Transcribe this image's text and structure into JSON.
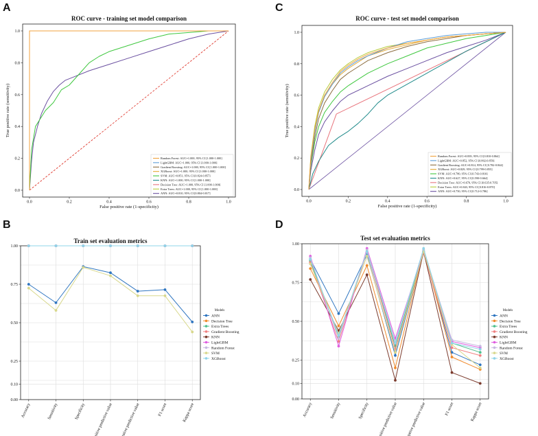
{
  "chart_data": [
    {
      "panel": "A",
      "type": "line",
      "title": "ROC curve - training set model comparison",
      "xlabel": "False positive rate (1-specificity)",
      "ylabel": "True positive rate (sensitivity)",
      "xlim": [
        0,
        1
      ],
      "ylim": [
        0,
        1
      ],
      "xticks": [
        "0.0",
        "0.2",
        "0.4",
        "0.6",
        "0.8",
        "1.0"
      ],
      "yticks": [
        "0.0",
        "0.2",
        "0.4",
        "0.6",
        "0.8",
        "1.0"
      ],
      "legend_position": "bottom-right",
      "reference_line": {
        "label": "chance",
        "color": "#e03c31"
      },
      "series": [
        {
          "name": "Random Forest",
          "legend": "Random Forest: AUC=1.000, 95% CI [1.000-1.000]",
          "color": "#f0a23c",
          "x": [
            0,
            0,
            1
          ],
          "y": [
            0,
            1,
            1
          ]
        },
        {
          "name": "LightGBM",
          "legend": "LightGBM: AUC=1.000, 95% CI [1.000-1.000]",
          "color": "#5b9bd5",
          "x": [
            0,
            0,
            1
          ],
          "y": [
            0,
            1,
            1
          ]
        },
        {
          "name": "Gradient Boosting",
          "legend": "Gradient Boosting: AUC=1.000, 95% CI [1.000-1.000]",
          "color": "#8c6d3f",
          "x": [
            0,
            0,
            1
          ],
          "y": [
            0,
            1,
            1
          ]
        },
        {
          "name": "XGBoost",
          "legend": "XGBoost: AUC=1.000, 95% CI [1.000-1.000]",
          "color": "#e3a72f",
          "x": [
            0,
            0,
            1
          ],
          "y": [
            0,
            1,
            1
          ]
        },
        {
          "name": "SVM",
          "legend": "SVM: AUC=0.851, 95% CI [0.824-0.857]",
          "color": "#3ec73e",
          "x": [
            0,
            0.01,
            0.03,
            0.05,
            0.08,
            0.12,
            0.16,
            0.2,
            0.25,
            0.3,
            0.35,
            0.4,
            0.5,
            0.6,
            0.7,
            0.8,
            0.9,
            1.0
          ],
          "y": [
            0,
            0.25,
            0.4,
            0.44,
            0.5,
            0.55,
            0.63,
            0.66,
            0.73,
            0.8,
            0.84,
            0.87,
            0.91,
            0.95,
            0.98,
            0.99,
            1.0,
            1.0
          ]
        },
        {
          "name": "KNN",
          "legend": "KNN: AUC=1.000, 95% CI [1.000-1.000]",
          "color": "#1f8a8a",
          "x": [
            0,
            0,
            1
          ],
          "y": [
            0,
            1,
            1
          ]
        },
        {
          "name": "Decision Tree",
          "legend": "Decision Tree: AUC=1.000, 95% CI [1.000-1.000]",
          "color": "#e8747c",
          "x": [
            0,
            0,
            1
          ],
          "y": [
            0,
            1,
            1
          ]
        },
        {
          "name": "Extra Trees",
          "legend": "Extra Trees: AUC=1.000, 95% CI [1.000-1.000]",
          "color": "#b8cc3a",
          "x": [
            0,
            0,
            1
          ],
          "y": [
            0,
            1,
            1
          ]
        },
        {
          "name": "ANN",
          "legend": "ANN: AUC=0.810, 95% CI [0.804-0.817]",
          "color": "#6a4fa0",
          "x": [
            0,
            0.01,
            0.02,
            0.04,
            0.06,
            0.09,
            0.12,
            0.15,
            0.18,
            0.22,
            0.3,
            0.4,
            0.5,
            0.6,
            0.7,
            0.8,
            0.9,
            1.0
          ],
          "y": [
            0,
            0.18,
            0.3,
            0.4,
            0.48,
            0.56,
            0.62,
            0.66,
            0.69,
            0.71,
            0.75,
            0.79,
            0.83,
            0.87,
            0.91,
            0.95,
            0.98,
            1.0
          ]
        }
      ]
    },
    {
      "panel": "C",
      "type": "line",
      "title": "ROC curve - test set model comparison",
      "xlabel": "False positive rate (1-specificity)",
      "ylabel": "True positive rate (sensitivity)",
      "xlim": [
        0,
        1
      ],
      "ylim": [
        0,
        1
      ],
      "xticks": [
        "0.0",
        "0.2",
        "0.4",
        "0.6",
        "0.8",
        "1.0"
      ],
      "yticks": [
        "0.0",
        "0.2",
        "0.4",
        "0.6",
        "0.8",
        "1.0"
      ],
      "legend_position": "bottom-right",
      "series": [
        {
          "name": "Random Forest",
          "legend": "Random Forest: AUC=0.839, 95% CI [0.810-0.864]",
          "color": "#f0a23c",
          "x": [
            0,
            0.01,
            0.03,
            0.05,
            0.08,
            0.12,
            0.16,
            0.2,
            0.25,
            0.3,
            0.4,
            0.5,
            0.6,
            0.7,
            0.8,
            0.9,
            1.0
          ],
          "y": [
            0,
            0.2,
            0.38,
            0.5,
            0.6,
            0.68,
            0.75,
            0.79,
            0.83,
            0.86,
            0.9,
            0.93,
            0.95,
            0.97,
            0.98,
            0.99,
            1.0
          ]
        },
        {
          "name": "LightGBM",
          "legend": "LightGBM: AUC=0.852, 95% CI [0.802-0.859]",
          "color": "#5b9bd5",
          "x": [
            0,
            0.01,
            0.03,
            0.05,
            0.08,
            0.12,
            0.16,
            0.2,
            0.25,
            0.3,
            0.4,
            0.5,
            0.6,
            0.7,
            0.8,
            0.9,
            1.0
          ],
          "y": [
            0,
            0.18,
            0.36,
            0.49,
            0.59,
            0.67,
            0.74,
            0.78,
            0.82,
            0.85,
            0.9,
            0.94,
            0.96,
            0.98,
            0.99,
            1.0,
            1.0
          ]
        },
        {
          "name": "Gradient Boosting",
          "legend": "Gradient Boosting: AUC=0.814, 95% CI [0.782-0.844]",
          "color": "#8c6d3f",
          "x": [
            0,
            0.01,
            0.03,
            0.05,
            0.08,
            0.12,
            0.16,
            0.2,
            0.25,
            0.3,
            0.4,
            0.5,
            0.6,
            0.7,
            0.8,
            0.9,
            1.0
          ],
          "y": [
            0,
            0.16,
            0.33,
            0.45,
            0.55,
            0.63,
            0.7,
            0.74,
            0.78,
            0.82,
            0.87,
            0.91,
            0.94,
            0.96,
            0.98,
            0.99,
            1.0
          ]
        },
        {
          "name": "XGBoost",
          "legend": "XGBoost: AUC=0.829, 95% CI [0.799-0.855]",
          "color": "#e3a72f",
          "x": [
            0,
            0.01,
            0.03,
            0.05,
            0.08,
            0.12,
            0.16,
            0.2,
            0.25,
            0.3,
            0.4,
            0.5,
            0.6,
            0.7,
            0.8,
            0.9,
            1.0
          ],
          "y": [
            0,
            0.19,
            0.37,
            0.49,
            0.59,
            0.67,
            0.73,
            0.77,
            0.81,
            0.85,
            0.89,
            0.92,
            0.95,
            0.97,
            0.98,
            0.99,
            1.0
          ]
        },
        {
          "name": "SVM",
          "legend": "SVM: AUC=0.780, 95% CI [0.743-0.810]",
          "color": "#3ec73e",
          "x": [
            0,
            0.01,
            0.03,
            0.05,
            0.08,
            0.12,
            0.16,
            0.2,
            0.25,
            0.3,
            0.4,
            0.5,
            0.6,
            0.7,
            0.8,
            0.9,
            1.0
          ],
          "y": [
            0,
            0.15,
            0.3,
            0.4,
            0.49,
            0.56,
            0.62,
            0.66,
            0.7,
            0.74,
            0.8,
            0.85,
            0.9,
            0.93,
            0.96,
            0.98,
            1.0
          ]
        },
        {
          "name": "KNN",
          "legend": "KNN: AUC=0.627, 95% CI [0.590-0.664]",
          "color": "#1f8a8a",
          "x": [
            0,
            0.02,
            0.05,
            0.1,
            0.15,
            0.2,
            0.25,
            0.3,
            0.35,
            0.4,
            0.5,
            0.6,
            0.7,
            0.8,
            0.9,
            1.0
          ],
          "y": [
            0,
            0.1,
            0.18,
            0.28,
            0.33,
            0.37,
            0.42,
            0.48,
            0.55,
            0.6,
            0.67,
            0.74,
            0.81,
            0.88,
            0.94,
            1.0
          ]
        },
        {
          "name": "Decision Tree",
          "legend": "Decision Tree: AUC=0.670, 95% CI [0.635-0.705]",
          "color": "#e8747c",
          "x": [
            0,
            0.14,
            1.0
          ],
          "y": [
            0,
            0.48,
            1.0
          ]
        },
        {
          "name": "Extra Trees",
          "legend": "Extra Trees: AUC=0.843, 95% CI [0.816-0.870]",
          "color": "#b8cc3a",
          "x": [
            0,
            0.01,
            0.03,
            0.05,
            0.08,
            0.12,
            0.16,
            0.2,
            0.25,
            0.3,
            0.4,
            0.5,
            0.6,
            0.7,
            0.8,
            0.9,
            1.0
          ],
          "y": [
            0,
            0.21,
            0.4,
            0.52,
            0.62,
            0.7,
            0.76,
            0.8,
            0.84,
            0.87,
            0.91,
            0.93,
            0.95,
            0.97,
            0.98,
            0.99,
            1.0
          ]
        },
        {
          "name": "ANN",
          "legend": "ANN: AUC=0.750, 95% CI [0.712-0.786]",
          "color": "#6a4fa0",
          "x": [
            0,
            0.01,
            0.03,
            0.05,
            0.08,
            0.12,
            0.16,
            0.2,
            0.3,
            0.4,
            0.5,
            0.6,
            0.7,
            0.8,
            0.9,
            1.0
          ],
          "y": [
            0,
            0.12,
            0.25,
            0.35,
            0.43,
            0.5,
            0.56,
            0.6,
            0.66,
            0.72,
            0.77,
            0.82,
            0.87,
            0.91,
            0.95,
            1.0
          ]
        }
      ]
    },
    {
      "panel": "B",
      "type": "line",
      "title": "Train set evaluation metrics",
      "categories": [
        "Accuracy",
        "Sensitivity",
        "Specificity",
        "Positive predictive value",
        "Negative predictive value",
        "F1 score",
        "Kappa score"
      ],
      "ylim": [
        0,
        1
      ],
      "yticks": [
        "0.00",
        "0.10",
        "0.25",
        "0.50",
        "0.75",
        "1.00"
      ],
      "legend_title": "Models",
      "legend_position": "right",
      "series": [
        {
          "name": "ANN",
          "color": "#2e75c0",
          "values": [
            0.75,
            0.63,
            0.865,
            0.825,
            0.705,
            0.715,
            0.505
          ]
        },
        {
          "name": "Decision Tree",
          "color": "#f08a2c",
          "values": [
            1,
            1,
            1,
            1,
            1,
            1,
            1
          ]
        },
        {
          "name": "Extra Trees",
          "color": "#4fc08d",
          "values": [
            1,
            1,
            1,
            1,
            1,
            1,
            1
          ]
        },
        {
          "name": "Gradient Boosting",
          "color": "#f08080",
          "values": [
            1,
            1,
            1,
            1,
            1,
            1,
            1
          ]
        },
        {
          "name": "KNN",
          "color": "#7b3a2c",
          "values": [
            1,
            1,
            1,
            1,
            1,
            1,
            1
          ]
        },
        {
          "name": "LightGBM",
          "color": "#e05ce0",
          "values": [
            1,
            1,
            1,
            1,
            1,
            1,
            1
          ]
        },
        {
          "name": "Random Forest",
          "color": "#c6b8e0",
          "values": [
            1,
            1,
            1,
            1,
            1,
            1,
            1
          ]
        },
        {
          "name": "SVM",
          "color": "#d8d88c",
          "values": [
            0.725,
            0.58,
            0.86,
            0.805,
            0.675,
            0.675,
            0.44
          ]
        },
        {
          "name": "XGBoost",
          "color": "#8fd4e8",
          "values": [
            1,
            1,
            1,
            1,
            1,
            1,
            1
          ]
        }
      ]
    },
    {
      "panel": "D",
      "type": "line",
      "title": "Test set evaluation metrics",
      "categories": [
        "Accuracy",
        "Sensitivity",
        "Specificity",
        "Positive predictive value",
        "Negative predictive value",
        "F1 score",
        "Kappa score"
      ],
      "ylim": [
        0,
        1
      ],
      "yticks": [
        "0.00",
        "0.10",
        "0.25",
        "0.50",
        "0.75",
        "1.00"
      ],
      "legend_title": "Models",
      "legend_position": "right",
      "series": [
        {
          "name": "ANN",
          "color": "#2e75c0",
          "values": [
            0.9,
            0.55,
            0.93,
            0.28,
            0.95,
            0.3,
            0.22
          ]
        },
        {
          "name": "Decision Tree",
          "color": "#f08a2c",
          "values": [
            0.84,
            0.47,
            0.86,
            0.2,
            0.96,
            0.27,
            0.19
          ]
        },
        {
          "name": "Extra Trees",
          "color": "#4fc08d",
          "values": [
            0.89,
            0.4,
            0.95,
            0.34,
            0.95,
            0.36,
            0.3
          ]
        },
        {
          "name": "Gradient Boosting",
          "color": "#f08080",
          "values": [
            0.88,
            0.37,
            0.95,
            0.32,
            0.94,
            0.33,
            0.28
          ]
        },
        {
          "name": "KNN",
          "color": "#7b3a2c",
          "values": [
            0.77,
            0.44,
            0.8,
            0.12,
            0.95,
            0.17,
            0.1
          ]
        },
        {
          "name": "LightGBM",
          "color": "#e05ce0",
          "values": [
            0.92,
            0.34,
            0.97,
            0.39,
            0.95,
            0.37,
            0.33
          ]
        },
        {
          "name": "Random Forest",
          "color": "#c6b8e0",
          "values": [
            0.91,
            0.39,
            0.96,
            0.37,
            0.96,
            0.38,
            0.34
          ]
        },
        {
          "name": "SVM",
          "color": "#d8d88c",
          "values": [
            0.87,
            0.42,
            0.92,
            0.3,
            0.95,
            0.35,
            0.2
          ]
        },
        {
          "name": "XGBoost",
          "color": "#8fd4e8",
          "values": [
            0.9,
            0.41,
            0.95,
            0.36,
            0.97,
            0.36,
            0.32
          ]
        }
      ]
    }
  ]
}
